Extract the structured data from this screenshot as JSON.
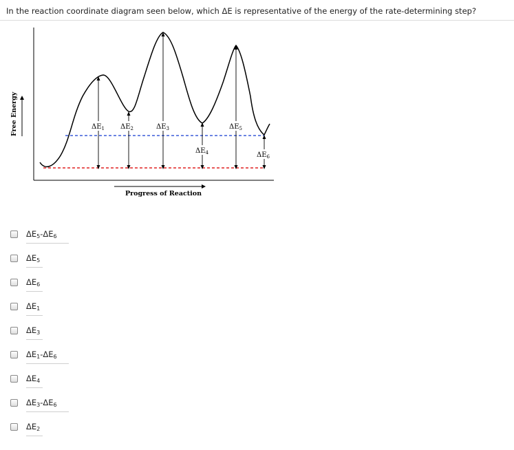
{
  "question": "In the reaction coordinate diagram seen below, which ΔE is representative of the energy of the rate-determining step?",
  "diagram": {
    "y_axis_label": "Free Energy",
    "x_axis_label": "Progress of Reaction",
    "energy_labels": {
      "dE1": {
        "base": "ΔE",
        "sub": "1"
      },
      "dE2": {
        "base": "ΔE",
        "sub": "2"
      },
      "dE3": {
        "base": "ΔE",
        "sub": "3"
      },
      "dE4": {
        "base": "ΔE",
        "sub": "4"
      },
      "dE5": {
        "base": "ΔE",
        "sub": "5"
      },
      "dE6": {
        "base": "ΔE",
        "sub": "6"
      }
    },
    "colors": {
      "blue_line": "#3a5bd9",
      "red_line": "#e02020",
      "curve": "#000000"
    }
  },
  "options": [
    {
      "base": "ΔE",
      "sub": "5",
      "mid": "-ΔE",
      "sub2": "6"
    },
    {
      "base": "ΔE",
      "sub": "5"
    },
    {
      "base": "ΔE",
      "sub": "6"
    },
    {
      "base": "ΔE",
      "sub": "1"
    },
    {
      "base": "ΔE",
      "sub": "3"
    },
    {
      "base": "ΔE",
      "sub": "1",
      "mid": "-ΔE",
      "sub2": "6"
    },
    {
      "base": "ΔE",
      "sub": "4"
    },
    {
      "base": "ΔE",
      "sub": "3",
      "mid": "-ΔE",
      "sub2": "6"
    },
    {
      "base": "ΔE",
      "sub": "2"
    }
  ]
}
